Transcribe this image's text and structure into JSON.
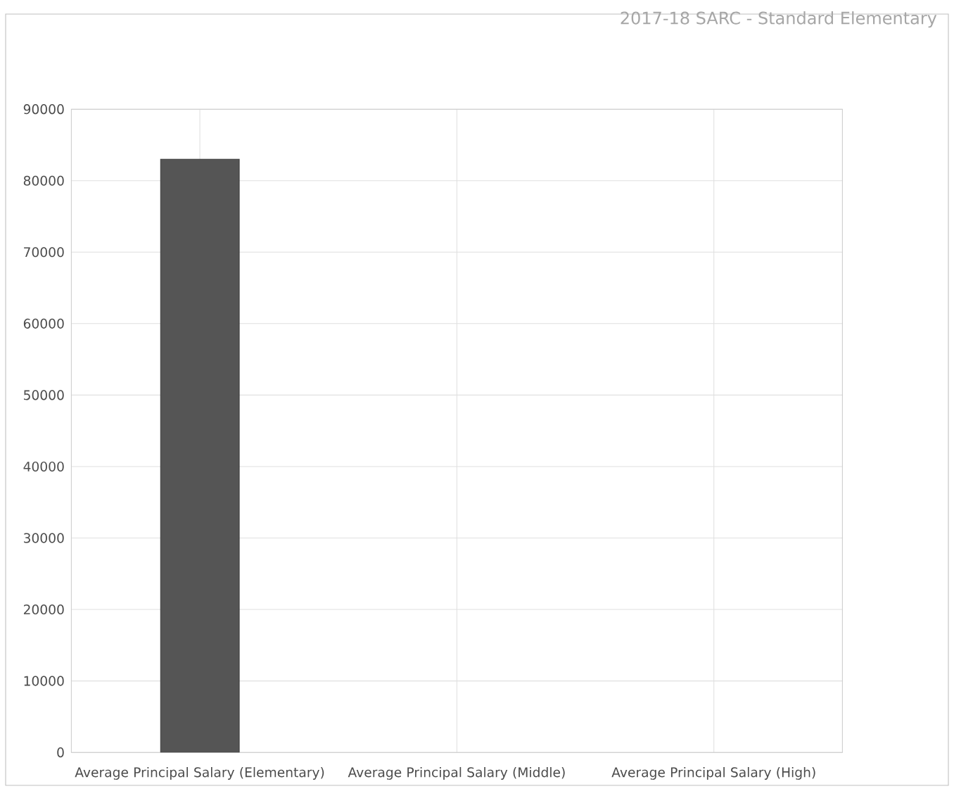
{
  "chart_data": {
    "type": "bar",
    "title": "2017-18 SARC - Standard Elementary",
    "categories": [
      "Average Principal Salary (Elementary)",
      "Average Principal Salary (Middle)",
      "Average Principal Salary (High)"
    ],
    "values": [
      83000,
      null,
      null
    ],
    "color": "#555555",
    "ylim": [
      0,
      90000
    ],
    "yticks": [
      0,
      10000,
      20000,
      30000,
      40000,
      50000,
      60000,
      70000,
      80000,
      90000
    ],
    "grid": true
  }
}
